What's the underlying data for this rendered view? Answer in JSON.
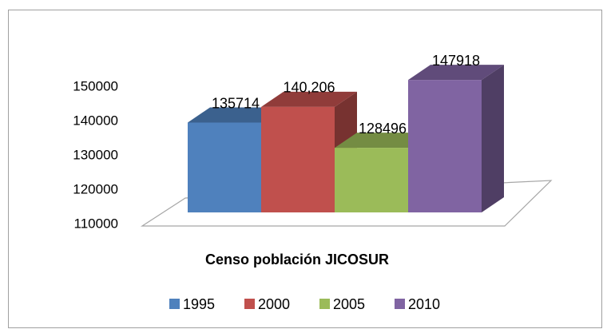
{
  "chart_data": {
    "type": "bar3d",
    "title": "Censo población JICOSUR",
    "categories": [
      null
    ],
    "series": [
      {
        "name": "1995",
        "color": "#4f81bd",
        "values": [
          135714
        ]
      },
      {
        "name": "2000",
        "color": "#c0504d",
        "values": [
          140206
        ],
        "value_labels": [
          "140,206"
        ]
      },
      {
        "name": "2005",
        "color": "#9bbb59",
        "values": [
          128496
        ]
      },
      {
        "name": "2010",
        "color": "#8064a2",
        "values": [
          147918
        ]
      }
    ],
    "ylim": [
      110000,
      150000
    ],
    "yticks": [
      110000,
      120000,
      130000,
      140000,
      150000
    ],
    "legend": "bottom"
  }
}
